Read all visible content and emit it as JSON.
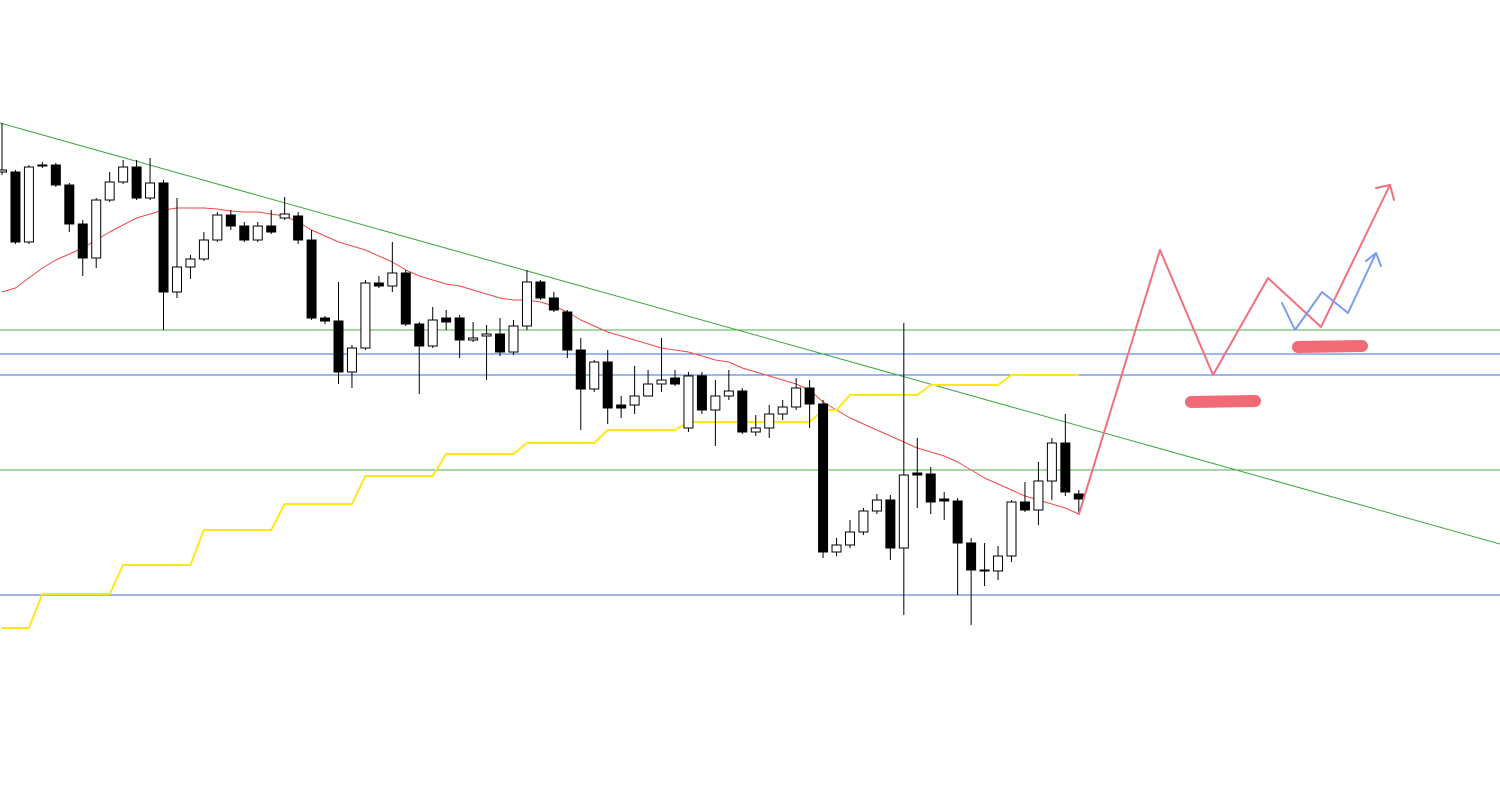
{
  "chart_data": {
    "type": "candlestick",
    "ylim": [
      0,
      787
    ],
    "candles": {
      "up_color": "#ffffff",
      "down_color": "#000000",
      "open": [
        615,
        615,
        545,
        621,
        622,
        602,
        563,
        529,
        587,
        605,
        620,
        589,
        604,
        495,
        520,
        528,
        547,
        572,
        561,
        547,
        561,
        569,
        571,
        547,
        469,
        466,
        415,
        439,
        504,
        501,
        514,
        463,
        441,
        469,
        469,
        447,
        451,
        453,
        435,
        461,
        505,
        489,
        475,
        437,
        398,
        425,
        382,
        382,
        391,
        403,
        409,
        359,
        411,
        377,
        391,
        396,
        355,
        359,
        373,
        380,
        399,
        383,
        235,
        242,
        255,
        276,
        287,
        239,
        314,
        313,
        288,
        286,
        244,
        217,
        216,
        231,
        285,
        277,
        306,
        344,
        293
      ],
      "high": [
        664,
        617,
        622,
        625,
        624,
        604,
        567,
        589,
        615,
        627,
        627,
        629,
        607,
        589,
        532,
        555,
        575,
        577,
        565,
        565,
        577,
        590,
        575,
        557,
        471,
        505,
        442,
        507,
        511,
        545,
        517,
        465,
        480,
        477,
        472,
        465,
        462,
        469,
        467,
        517,
        507,
        495,
        477,
        449,
        427,
        437,
        391,
        421,
        417,
        449,
        417,
        415,
        415,
        407,
        417,
        399,
        372,
        382,
        387,
        409,
        407,
        387,
        249,
        267,
        279,
        293,
        292,
        464,
        349,
        320,
        295,
        289,
        249,
        244,
        241,
        287,
        305,
        325,
        349,
        373,
        297
      ],
      "low": [
        612,
        543,
        543,
        619,
        600,
        555,
        511,
        519,
        585,
        603,
        587,
        587,
        457,
        489,
        508,
        526,
        545,
        557,
        545,
        545,
        553,
        567,
        543,
        467,
        463,
        403,
        399,
        437,
        499,
        495,
        461,
        393,
        439,
        457,
        429,
        445,
        407,
        431,
        432,
        457,
        487,
        475,
        429,
        357,
        395,
        363,
        369,
        373,
        391,
        395,
        401,
        355,
        373,
        341,
        387,
        353,
        351,
        349,
        367,
        377,
        359,
        229,
        231,
        239,
        252,
        273,
        227,
        172,
        279,
        273,
        267,
        192,
        162,
        201,
        207,
        225,
        275,
        262,
        287,
        291,
        273
      ],
      "close": [
        617,
        545,
        620,
        622,
        602,
        563,
        529,
        587,
        605,
        620,
        589,
        604,
        495,
        520,
        528,
        547,
        572,
        561,
        547,
        561,
        555,
        573,
        547,
        469,
        466,
        415,
        439,
        504,
        501,
        514,
        463,
        441,
        467,
        465,
        447,
        449,
        453,
        435,
        461,
        505,
        489,
        477,
        437,
        398,
        425,
        379,
        379,
        391,
        403,
        407,
        403,
        411,
        377,
        391,
        396,
        355,
        359,
        373,
        380,
        399,
        383,
        235,
        242,
        255,
        276,
        287,
        239,
        312,
        312,
        285,
        286,
        244,
        217,
        216,
        231,
        285,
        277,
        306,
        344,
        295,
        288
      ]
    },
    "lines": [
      {
        "color": "#f04848",
        "width": 1,
        "values": [
          495,
          499,
          509,
          519,
          527,
          533,
          539,
          547,
          555,
          562,
          569,
          573,
          577,
          579,
          579,
          579,
          578,
          576,
          575,
          575,
          573,
          571,
          565,
          557,
          551,
          545,
          541,
          537,
          531,
          525,
          517,
          511,
          507,
          503,
          501,
          497,
          493,
          489,
          487,
          487,
          485,
          481,
          475,
          467,
          461,
          455,
          451,
          447,
          443,
          439,
          437,
          435,
          431,
          427,
          425,
          419,
          415,
          411,
          407,
          403,
          397,
          385,
          377,
          369,
          363,
          357,
          351,
          345,
          339,
          335,
          331,
          325,
          317,
          309,
          303,
          297,
          291,
          287,
          283,
          279,
          273
        ]
      },
      {
        "color": "#ffe81a",
        "width": 2,
        "values": [
          159,
          159,
          159,
          193,
          193,
          193,
          193,
          193,
          193,
          222,
          222,
          222,
          222,
          222,
          222,
          257,
          257,
          257,
          257,
          257,
          257,
          283,
          283,
          283,
          283,
          283,
          283,
          311,
          311,
          311,
          311,
          311,
          311,
          333,
          333,
          333,
          333,
          333,
          333,
          344,
          344,
          344,
          344,
          344,
          344,
          357,
          357,
          357,
          357,
          357,
          357,
          365,
          365,
          365,
          365,
          365,
          365,
          365,
          365,
          365,
          365,
          377,
          377,
          392,
          392,
          392,
          392,
          392,
          392,
          402,
          402,
          402,
          402,
          402,
          402,
          412,
          412,
          412,
          412,
          412,
          412
        ]
      }
    ],
    "levels": [
      {
        "value": 457,
        "color": "#4caf50"
      },
      {
        "value": 317,
        "color": "#4caf50"
      },
      {
        "value": 433,
        "color": "#3a6fd8"
      },
      {
        "value": 412,
        "color": "#3a6fd8"
      },
      {
        "value": 192,
        "color": "#3a6fd8"
      }
    ]
  }
}
